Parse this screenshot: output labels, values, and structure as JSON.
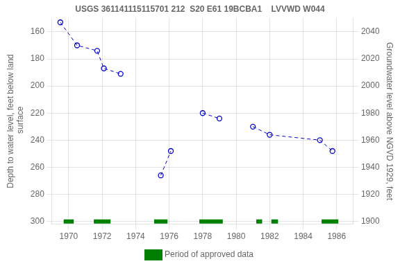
{
  "chart_data": {
    "type": "line",
    "title": "USGS 361141115115701 212  S20 E61 19BCBA1    LVVWD W044",
    "ylabel": "Depth to water level, feet below land\n surface",
    "y2label": "Groundwater level above NGVD 1929, feet",
    "series": [
      {
        "x": [
          1969.5,
          1970.5,
          1971.7,
          1972.1,
          1973.1
        ],
        "values": [
          153,
          170,
          174,
          187,
          191
        ],
        "color": "#0000CC",
        "line_style": "dashed",
        "marker": "circle"
      },
      {
        "x": [
          1975.5,
          1976.1
        ],
        "values": [
          266,
          248
        ],
        "color": "#0000CC",
        "line_style": "dashed",
        "marker": "circle"
      },
      {
        "x": [
          1978.0,
          1979.0
        ],
        "values": [
          220,
          224
        ],
        "color": "#0000CC",
        "line_style": "dashed",
        "marker": "circle"
      },
      {
        "x": [
          1981.0,
          1982.0,
          1985.0,
          1985.75
        ],
        "values": [
          230,
          236,
          240,
          248
        ],
        "color": "#0000CC",
        "line_style": "dashed",
        "marker": "circle"
      },
      {
        "name": "Period of approved data",
        "type": "period",
        "color": "#008000",
        "level": 300,
        "ranges": [
          [
            1969.7,
            1970.3
          ],
          [
            1971.5,
            1972.5
          ],
          [
            1975.1,
            1975.9
          ],
          [
            1977.8,
            1979.2
          ],
          [
            1981.2,
            1981.55
          ],
          [
            1982.1,
            1982.5
          ],
          [
            1985.1,
            1986.1
          ]
        ]
      }
    ],
    "xlim": [
      1969,
      1987
    ],
    "xticks": [
      1970,
      1972,
      1974,
      1976,
      1978,
      1980,
      1982,
      1984,
      1986
    ],
    "ylim": [
      302,
      150
    ],
    "yticks": [
      160,
      180,
      200,
      220,
      240,
      260,
      280,
      300
    ],
    "y2lim": [
      1898,
      2050
    ],
    "y2ticks": [
      1900,
      1920,
      1940,
      1960,
      1980,
      2000,
      2020,
      2040
    ],
    "grid": true,
    "legend": "bottom"
  }
}
